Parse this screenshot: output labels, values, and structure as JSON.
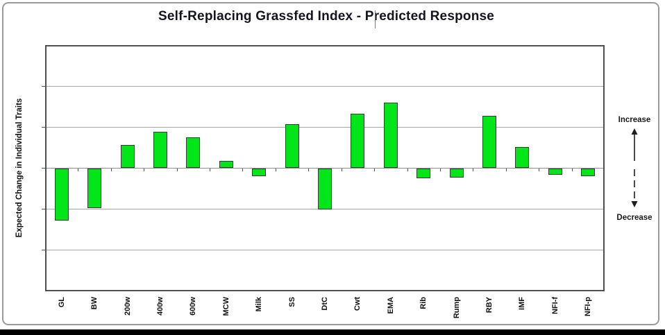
{
  "chart_data": {
    "type": "bar",
    "title": "Self-Replacing Grassfed Index - Predicted Response",
    "ylabel": "Expected Change in Individual Traits",
    "xlabel": "",
    "categories": [
      "GL",
      "BW",
      "200w",
      "400w",
      "600w",
      "MCW",
      "Milk",
      "SS",
      "DtC",
      "Cwt",
      "EMA",
      "Rib",
      "Rump",
      "RBY",
      "IMF",
      "NFI-f",
      "NFI-p"
    ],
    "values": [
      -1.27,
      -0.98,
      0.57,
      0.88,
      0.76,
      0.17,
      -0.19,
      1.08,
      -1.0,
      1.33,
      1.6,
      -0.25,
      -0.22,
      1.27,
      0.52,
      -0.16,
      -0.2
    ],
    "ylim": [
      -3,
      3
    ],
    "gridline_interval": 1,
    "grid": true,
    "y_tick_labels_shown": false,
    "legend": "none",
    "annotations": {
      "increase_label": "Increase",
      "decrease_label": "Decrease",
      "increase_arrow_icon": "arrow-up",
      "decrease_arrow_icon": "arrow-down"
    },
    "colors": {
      "bar_fill": "#00e619",
      "bar_border": "#383838",
      "gridline": "#a6a6a6",
      "zero_line": "#8f8f8f",
      "plot_border": "#4f4f4f",
      "frame_border": "#9a9a9a",
      "title": "#15151f",
      "text": "#111111",
      "caret": "#7a7a7a",
      "bottom_strip": "#000000",
      "arrow": "#1f1f1f"
    }
  }
}
